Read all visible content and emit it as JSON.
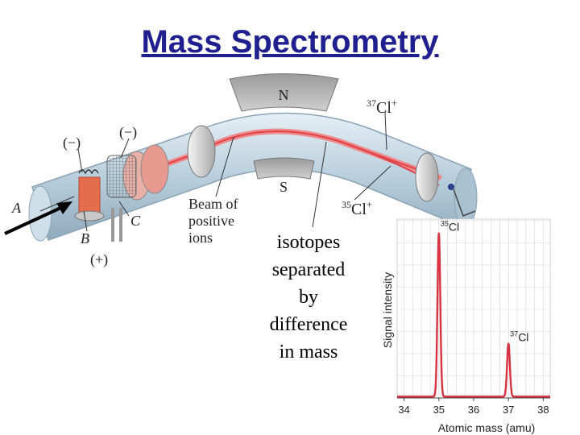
{
  "title": "Mass Spectrometry",
  "caption": {
    "line1": "isotopes",
    "line2": "separated",
    "line3": "by",
    "line4": "difference",
    "line5": "in mass"
  },
  "diagram": {
    "magnet_north": "N",
    "magnet_south": "S",
    "ion_37_mass": "37",
    "ion_37_symbol": "Cl",
    "ion_37_charge": "+",
    "ion_35_mass": "35",
    "ion_35_symbol": "Cl",
    "ion_35_charge": "+",
    "label_a": "A",
    "label_b": "B",
    "label_c": "C",
    "label_minus_1": "(−)",
    "label_minus_2": "(−)",
    "label_plus": "(+)",
    "beam_line1": "Beam of",
    "beam_line2": "positive",
    "beam_line3": "ions"
  },
  "chart_data": {
    "type": "line",
    "xlabel": "Atomic mass (amu)",
    "ylabel": "Signal intensity",
    "x_ticks": [
      34,
      35,
      36,
      37,
      38
    ],
    "xlim": [
      33.8,
      38.2
    ],
    "ylim": [
      0,
      1
    ],
    "peaks": [
      {
        "x": 35,
        "y": 0.95,
        "mass_label": "35",
        "symbol": "Cl"
      },
      {
        "x": 37,
        "y": 0.31,
        "mass_label": "37",
        "symbol": "Cl"
      }
    ],
    "colors": {
      "signal": "#d9313f",
      "grid": "#d5d5d5"
    }
  }
}
